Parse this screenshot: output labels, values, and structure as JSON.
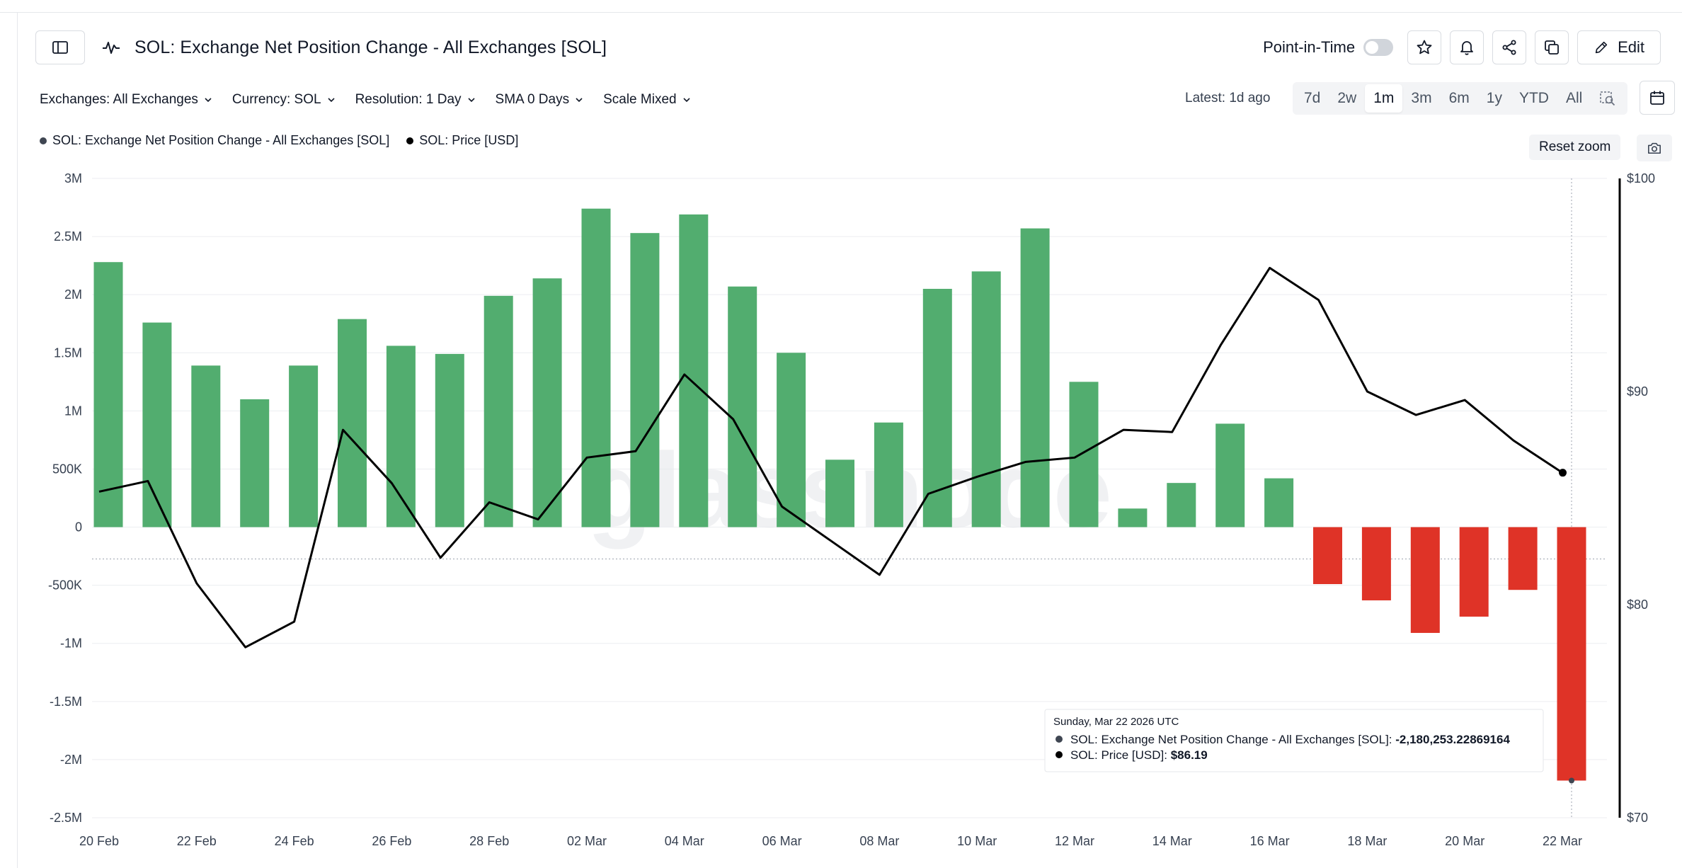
{
  "header": {
    "title": "SOL: Exchange Net Position Change - All Exchanges [SOL]",
    "point_in_time_label": "Point-in-Time",
    "edit_label": "Edit"
  },
  "filters": [
    {
      "label": "Exchanges: All Exchanges"
    },
    {
      "label": "Currency: SOL"
    },
    {
      "label": "Resolution: 1 Day"
    },
    {
      "label": "SMA 0 Days"
    },
    {
      "label": "Scale Mixed"
    }
  ],
  "latest": "Latest: 1d ago",
  "ranges": [
    {
      "label": "7d",
      "active": false
    },
    {
      "label": "2w",
      "active": false
    },
    {
      "label": "1m",
      "active": true
    },
    {
      "label": "3m",
      "active": false
    },
    {
      "label": "6m",
      "active": false
    },
    {
      "label": "1y",
      "active": false
    },
    {
      "label": "YTD",
      "active": false
    },
    {
      "label": "All",
      "active": false
    }
  ],
  "reset_zoom": "Reset zoom",
  "colors": {
    "positive": "#52ad6f",
    "negative": "#df3327",
    "price": "#000000",
    "netpos_dot": "#3f4652"
  },
  "chart_data": {
    "type": "bar",
    "title": "SOL: Exchange Net Position Change - All Exchanges [SOL]",
    "watermark": "glassnode",
    "x": [
      "20 Feb",
      "21 Feb",
      "22 Feb",
      "23 Feb",
      "24 Feb",
      "25 Feb",
      "26 Feb",
      "27 Feb",
      "28 Feb",
      "01 Mar",
      "02 Mar",
      "03 Mar",
      "04 Mar",
      "05 Mar",
      "06 Mar",
      "07 Mar",
      "08 Mar",
      "09 Mar",
      "10 Mar",
      "11 Mar",
      "12 Mar",
      "13 Mar",
      "14 Mar",
      "15 Mar",
      "16 Mar",
      "17 Mar",
      "18 Mar",
      "19 Mar",
      "20 Mar",
      "21 Mar",
      "22 Mar"
    ],
    "x_tick_labels": [
      "20 Feb",
      "22 Feb",
      "24 Feb",
      "26 Feb",
      "28 Feb",
      "02 Mar",
      "04 Mar",
      "06 Mar",
      "08 Mar",
      "10 Mar",
      "12 Mar",
      "14 Mar",
      "16 Mar",
      "18 Mar",
      "20 Mar",
      "22 Mar"
    ],
    "series": [
      {
        "name": "SOL: Exchange Net Position Change - All Exchanges [SOL]",
        "axis": "left",
        "type": "bar",
        "values": [
          2280000,
          1760000,
          1390000,
          1100000,
          1390000,
          1790000,
          1560000,
          1490000,
          1990000,
          2140000,
          2740000,
          2530000,
          2690000,
          2070000,
          1500000,
          580000,
          900000,
          2050000,
          2200000,
          2570000,
          1250000,
          160000,
          380000,
          890000,
          420000,
          -490000,
          -630000,
          -910000,
          -770000,
          -540000,
          -2180253.22869164
        ]
      },
      {
        "name": "SOL: Price [USD]",
        "axis": "right",
        "type": "line",
        "values": [
          85.3,
          85.8,
          81.0,
          78.0,
          79.2,
          88.2,
          85.7,
          82.2,
          84.8,
          84.0,
          86.9,
          87.2,
          90.8,
          88.7,
          84.6,
          83.0,
          81.4,
          85.2,
          86.0,
          86.7,
          86.9,
          88.2,
          88.1,
          92.2,
          95.8,
          94.3,
          90.0,
          88.9,
          89.6,
          87.7,
          86.19
        ]
      }
    ],
    "y_left": {
      "min": -2500000,
      "max": 3000000,
      "ticks": [
        3000000,
        2500000,
        2000000,
        1500000,
        1000000,
        500000,
        0,
        -500000,
        -1000000,
        -1500000,
        -2000000,
        -2500000
      ],
      "tick_labels": [
        "3M",
        "2.5M",
        "2M",
        "1.5M",
        "1M",
        "500K",
        "0",
        "-500K",
        "-1M",
        "-1.5M",
        "-2M",
        "-2.5M"
      ]
    },
    "y_right": {
      "min": 70,
      "max": 100,
      "ticks": [
        100,
        90,
        80,
        70
      ],
      "tick_labels": [
        "$100",
        "$90",
        "$80",
        "$70"
      ]
    },
    "legend": [
      {
        "label": "SOL: Exchange Net Position Change - All Exchanges [SOL]"
      },
      {
        "label": "SOL: Price [USD]"
      }
    ],
    "tooltip": {
      "date": "Sunday, Mar 22 2026 UTC",
      "series_label": "SOL: Exchange Net Position Change - All Exchanges [SOL]:",
      "series_value": "-2,180,253.22869164",
      "price_label": "SOL: Price [USD]:",
      "price_value": "$86.19",
      "index": 30
    }
  }
}
